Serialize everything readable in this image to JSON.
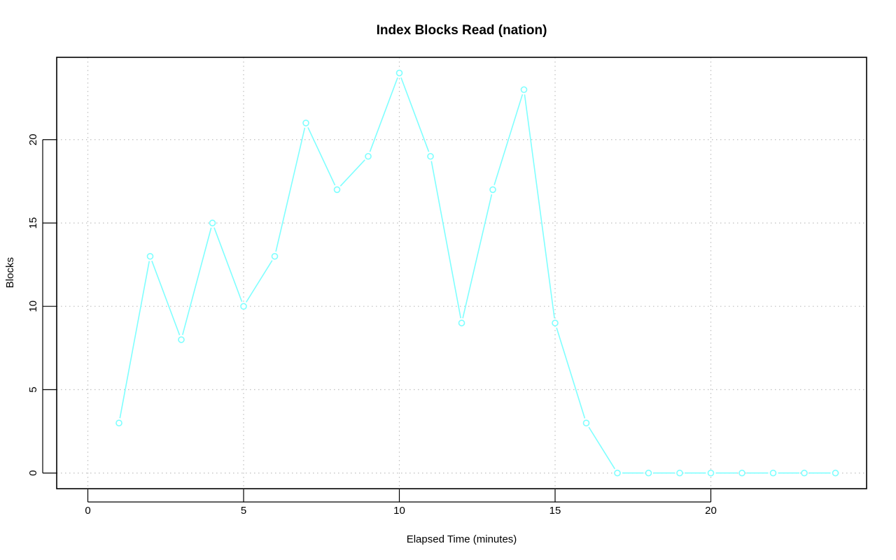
{
  "chart_data": {
    "type": "line",
    "title": "Index Blocks Read (nation)",
    "xlabel": "Elapsed Time (minutes)",
    "ylabel": "Blocks",
    "xlim": [
      -1,
      25
    ],
    "ylim": [
      -0.94,
      24.94
    ],
    "xticks": [
      0,
      5,
      10,
      15,
      20
    ],
    "yticks": [
      0,
      5,
      10,
      15,
      20
    ],
    "grid": true,
    "marker": "open-circle",
    "color": "#7fffff",
    "x": [
      1,
      2,
      3,
      4,
      5,
      6,
      7,
      8,
      9,
      10,
      11,
      12,
      13,
      14,
      15,
      16,
      17,
      18,
      19,
      20,
      21,
      22,
      23,
      24
    ],
    "y": [
      3,
      13,
      8,
      15,
      10,
      13,
      21,
      17,
      19,
      24,
      19,
      9,
      17,
      23,
      9,
      3,
      0,
      0,
      0,
      0,
      0,
      0,
      0,
      0
    ]
  }
}
